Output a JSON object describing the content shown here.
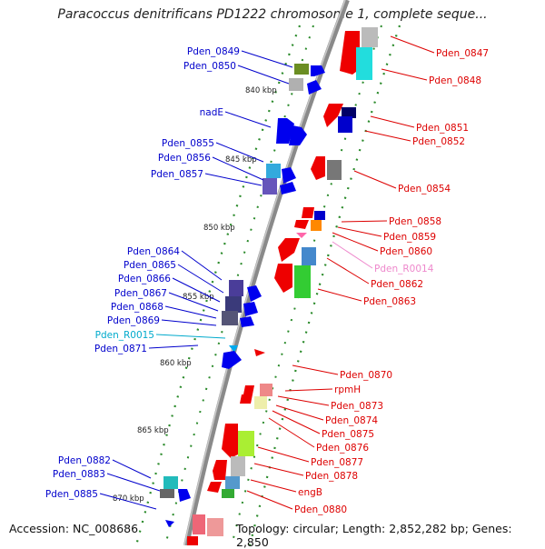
{
  "title": "Paracoccus denitrificans PD1222 chromosome 1, complete seque...",
  "footer": {
    "accession": "Accession: NC_008686",
    "topology": "Topology: circular; Length: 2,852,282 bp; Genes: 2,850"
  },
  "colors": {
    "forward_label": "#0000cc",
    "reverse_label": "#dd0000",
    "trna_forward_label": "#00aacc",
    "trna_reverse_label": "#ee88cc",
    "backbone": "#888888",
    "tick": "#2a8a2a"
  },
  "scale_labels": [
    "840 kbp",
    "845 kbp",
    "850 kbp",
    "855 kbp",
    "860 kbp",
    "865 kbp",
    "870 kbp"
  ],
  "left_labels": [
    {
      "text": "Pden_0849",
      "type": "cds"
    },
    {
      "text": "Pden_0850",
      "type": "cds"
    },
    {
      "text": "nadE",
      "type": "cds"
    },
    {
      "text": "Pden_0855",
      "type": "cds"
    },
    {
      "text": "Pden_0856",
      "type": "cds"
    },
    {
      "text": "Pden_0857",
      "type": "cds"
    },
    {
      "text": "Pden_0864",
      "type": "cds"
    },
    {
      "text": "Pden_0865",
      "type": "cds"
    },
    {
      "text": "Pden_0866",
      "type": "cds"
    },
    {
      "text": "Pden_0867",
      "type": "cds"
    },
    {
      "text": "Pden_0868",
      "type": "cds"
    },
    {
      "text": "Pden_0869",
      "type": "cds"
    },
    {
      "text": "Pden_R0015",
      "type": "trna"
    },
    {
      "text": "Pden_0871",
      "type": "cds"
    },
    {
      "text": "Pden_0882",
      "type": "cds"
    },
    {
      "text": "Pden_0883",
      "type": "cds"
    },
    {
      "text": "Pden_0885",
      "type": "cds"
    }
  ],
  "right_labels": [
    {
      "text": "Pden_0847",
      "type": "cds"
    },
    {
      "text": "Pden_0848",
      "type": "cds"
    },
    {
      "text": "Pden_0851",
      "type": "cds"
    },
    {
      "text": "Pden_0852",
      "type": "cds"
    },
    {
      "text": "Pden_0854",
      "type": "cds"
    },
    {
      "text": "Pden_0858",
      "type": "cds"
    },
    {
      "text": "Pden_0859",
      "type": "cds"
    },
    {
      "text": "Pden_0860",
      "type": "cds"
    },
    {
      "text": "Pden_R0014",
      "type": "trna"
    },
    {
      "text": "Pden_0862",
      "type": "cds"
    },
    {
      "text": "Pden_0863",
      "type": "cds"
    },
    {
      "text": "Pden_0870",
      "type": "cds"
    },
    {
      "text": "rpmH",
      "type": "cds"
    },
    {
      "text": "Pden_0873",
      "type": "cds"
    },
    {
      "text": "Pden_0874",
      "type": "cds"
    },
    {
      "text": "Pden_0875",
      "type": "cds"
    },
    {
      "text": "Pden_0876",
      "type": "cds"
    },
    {
      "text": "Pden_0877",
      "type": "cds"
    },
    {
      "text": "Pden_0878",
      "type": "cds"
    },
    {
      "text": "engB",
      "type": "cds"
    },
    {
      "text": "Pden_0880",
      "type": "cds"
    }
  ]
}
